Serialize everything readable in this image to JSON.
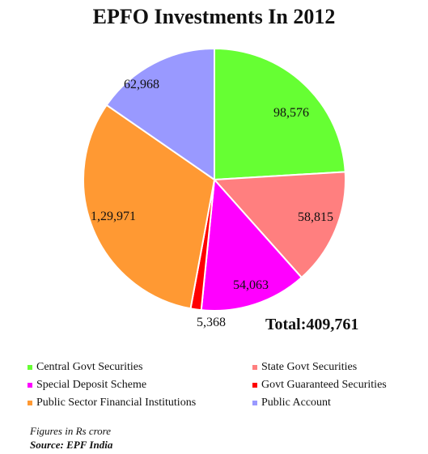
{
  "chart_data": {
    "type": "pie",
    "title": "EPFO Investments In 2012",
    "total_label": "Total:409,761",
    "slices": [
      {
        "name": "Central Govt Securities",
        "value": 98576,
        "label": "98,576",
        "color": "#66ff33"
      },
      {
        "name": "State Govt Securities",
        "value": 58815,
        "label": "58,815",
        "color": "#ff7f7f"
      },
      {
        "name": "Special Deposit Scheme",
        "value": 54063,
        "label": "54,063",
        "color": "#ff00ff"
      },
      {
        "name": "Govt Guaranteed Securities",
        "value": 5368,
        "label": "5,368",
        "color": "#ff0000"
      },
      {
        "name": "Public Sector Financial Institutions",
        "value": 129971,
        "label": "1,29,971",
        "color": "#ff9933"
      },
      {
        "name": "Public Account",
        "value": 62968,
        "label": "62,968",
        "color": "#9999ff"
      }
    ],
    "legend_placement": "bottom"
  },
  "footnote": "Figures in Rs crore",
  "source": "Source: EPF India"
}
